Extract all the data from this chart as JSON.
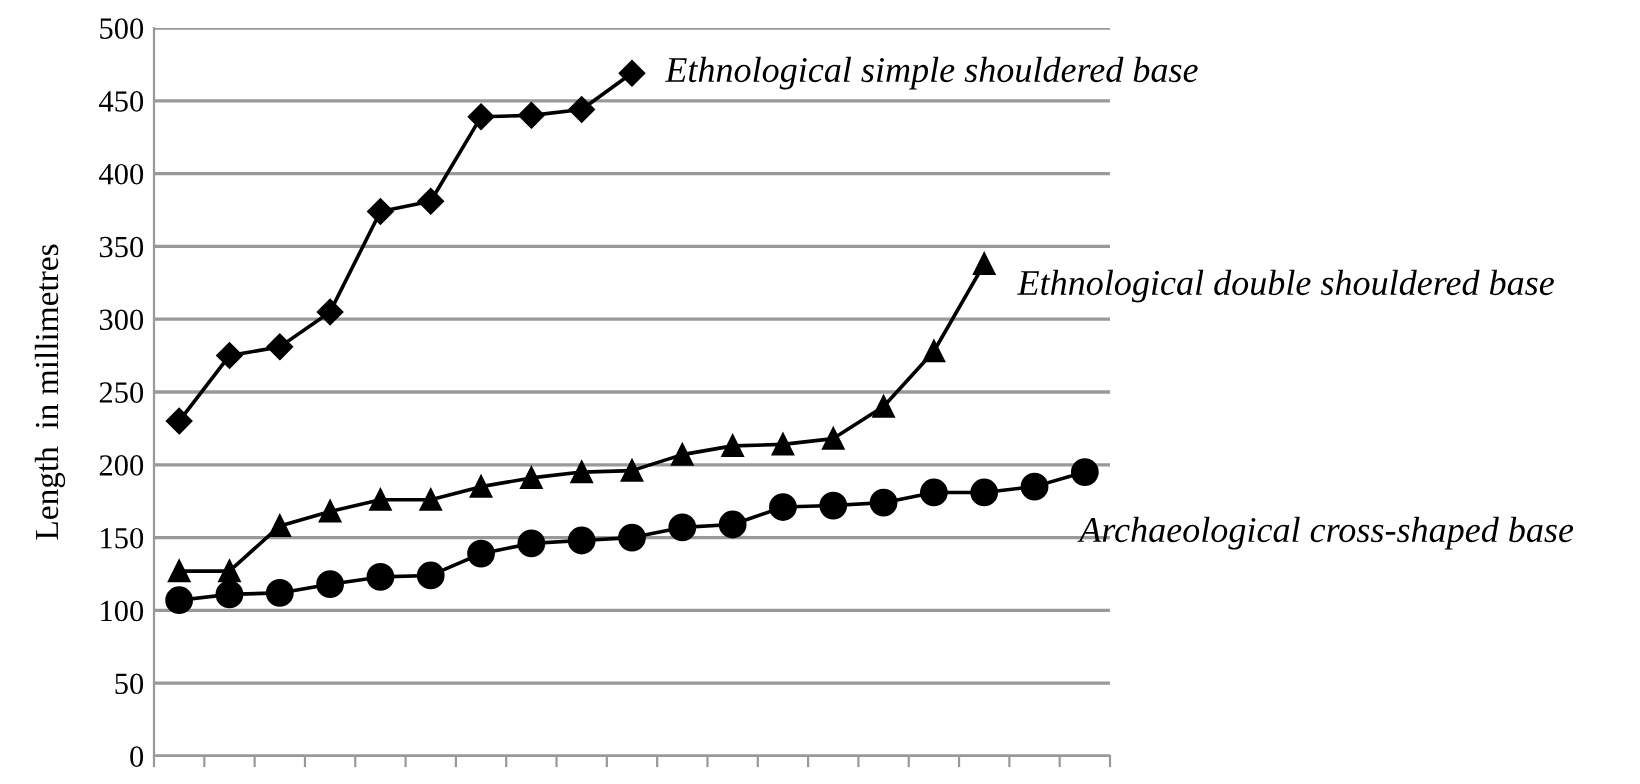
{
  "chart_data": {
    "type": "line",
    "ylabel": "Length  in millimetres",
    "categories": [
      null,
      null,
      null,
      null,
      null,
      null,
      null,
      null,
      null,
      null,
      null,
      null,
      null,
      null,
      null,
      null,
      null,
      null,
      null
    ],
    "series": [
      {
        "name": "Ethnological simple shouldered base",
        "color": "#000000",
        "marker": "diamond",
        "values": [
          230,
          275,
          281,
          305,
          374,
          381,
          439,
          440,
          444,
          469,
          null,
          null,
          null,
          null,
          null,
          null,
          null,
          null,
          null
        ]
      },
      {
        "name": "Ethnological double shouldered base",
        "color": "#000000",
        "marker": "triangle",
        "values": [
          127,
          127,
          158,
          168,
          176,
          176,
          185,
          191,
          195,
          196,
          207,
          213,
          214,
          218,
          240,
          278,
          338,
          null,
          null
        ]
      },
      {
        "name": "Archaeological cross-shaped base",
        "color": "#000000",
        "marker": "circle",
        "values": [
          107,
          111,
          112,
          118,
          123,
          124,
          139,
          146,
          148,
          150,
          157,
          159,
          171,
          172,
          174,
          181,
          181,
          185,
          195
        ]
      }
    ],
    "ylim": [
      0,
      500
    ],
    "yticks": [
      0,
      50,
      100,
      150,
      200,
      250,
      300,
      350,
      400,
      450,
      500
    ],
    "grid": "y",
    "legend": false,
    "line_style": "solid"
  }
}
